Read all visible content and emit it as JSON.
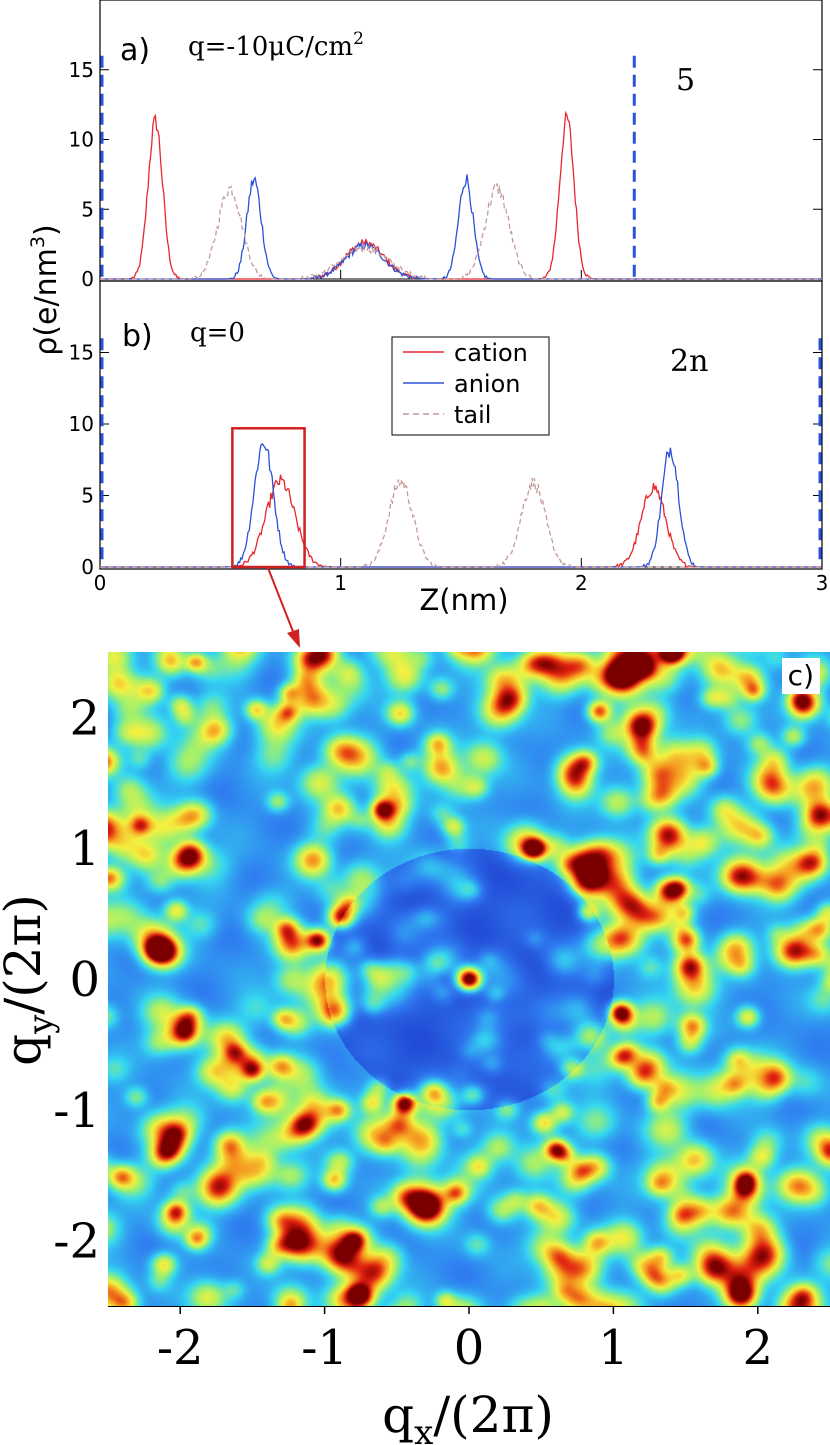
{
  "chart_data": [
    {
      "id": "a",
      "type": "line",
      "panel_label": "a)",
      "charge_label": "q=-10μC/cm",
      "charge_exp": "2",
      "tag": "5",
      "ylabel": "ρ(e/nm",
      "ylabel_exp": "3",
      "ylabel_close": ")",
      "xlim": [
        0,
        3
      ],
      "ylim": [
        0,
        20
      ],
      "yticks": [
        "0",
        "5",
        "10",
        "15"
      ],
      "electrode_positions": [
        0,
        2.22
      ],
      "series": [
        {
          "name": "cation",
          "color": "#e8262b",
          "peaks": [
            [
              0.23,
              11.3,
              0.03
            ],
            [
              1.1,
              2.6,
              0.08
            ],
            [
              1.94,
              11.5,
              0.03
            ]
          ]
        },
        {
          "name": "anion",
          "color": "#2a52d9",
          "peaks": [
            [
              0.64,
              7.1,
              0.03
            ],
            [
              1.1,
              2.4,
              0.08
            ],
            [
              1.52,
              7.2,
              0.03
            ]
          ]
        },
        {
          "name": "tail",
          "color": "#c59a9a",
          "peaks": [
            [
              0.54,
              6.5,
              0.05
            ],
            [
              1.1,
              2.2,
              0.1
            ],
            [
              1.65,
              6.5,
              0.05
            ]
          ]
        }
      ]
    },
    {
      "id": "b",
      "type": "line",
      "panel_label": "b)",
      "charge_label": "q=0",
      "tag": "2n",
      "xlabel": "Z(nm)",
      "xlim": [
        0,
        3
      ],
      "ylim": [
        0,
        20
      ],
      "xticks": [
        "0",
        "1",
        "2",
        "3"
      ],
      "yticks": [
        "0",
        "5",
        "10",
        "15"
      ],
      "electrode_positions": [
        0,
        3.0
      ],
      "legend": {
        "position": "upper-center",
        "entries": [
          "cation",
          "anion",
          "tail"
        ]
      },
      "series": [
        {
          "name": "cation",
          "color": "#e8262b",
          "peaks": [
            [
              0.75,
              6.0,
              0.06
            ],
            [
              2.3,
              5.6,
              0.05
            ]
          ]
        },
        {
          "name": "anion",
          "color": "#2a52d9",
          "peaks": [
            [
              0.68,
              8.7,
              0.04
            ],
            [
              2.37,
              8.3,
              0.035
            ]
          ]
        },
        {
          "name": "tail",
          "color": "#c59a9a",
          "peaks": [
            [
              1.25,
              6.0,
              0.05
            ],
            [
              1.8,
              5.9,
              0.05
            ]
          ]
        }
      ],
      "highlight_region": {
        "x": [
          0.55,
          0.85
        ],
        "y": [
          0,
          9.7
        ]
      }
    },
    {
      "id": "c",
      "type": "heatmap",
      "panel_label": "c)",
      "xlabel": "q",
      "xlabel_sub": "x",
      "xlabel_tail": "/(2π)",
      "ylabel": "q",
      "ylabel_sub": "y",
      "ylabel_tail": "/(2π)",
      "xlim": [
        -2.5,
        2.5
      ],
      "ylim": [
        -2.5,
        2.5
      ],
      "xticks": [
        "-2",
        "-1",
        "0",
        "1",
        "2"
      ],
      "yticks": [
        "2",
        "1",
        "0",
        "-1",
        "-2"
      ],
      "bright_spots": [
        [
          0.0,
          0.0,
          1.0
        ],
        [
          0.45,
          1.0,
          0.95
        ],
        [
          -0.6,
          1.3,
          0.8
        ],
        [
          -1.05,
          0.3,
          0.85
        ],
        [
          1.05,
          -0.25,
          0.85
        ],
        [
          -0.45,
          -0.95,
          0.95
        ],
        [
          0.6,
          -1.3,
          0.75
        ],
        [
          0.9,
          2.05,
          0.7
        ],
        [
          1.45,
          0.7,
          0.55
        ],
        [
          -1.5,
          -0.7,
          0.55
        ],
        [
          -0.8,
          -2.0,
          0.55
        ],
        [
          -2.0,
          2.1,
          0.35
        ],
        [
          1.9,
          -1.6,
          0.35
        ]
      ],
      "colormap": [
        "#1a1f8a",
        "#1f3fd0",
        "#2f7bf0",
        "#35d8f0",
        "#9cf070",
        "#f4f040",
        "#f59a20",
        "#e02010",
        "#7a0000"
      ]
    }
  ]
}
